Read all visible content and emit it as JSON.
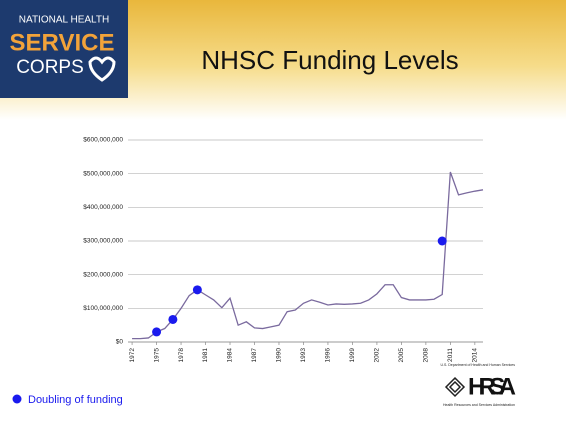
{
  "slide": {
    "logo": {
      "line1": "NATIONAL HEALTH",
      "line2": "SERVICE",
      "line3": "CORPS"
    },
    "hrsa": {
      "top": "U.S. Department of Health and Human Services",
      "name": "HRSA",
      "bottom": "Health Resources and Services Administration"
    }
  },
  "chart_data": {
    "type": "line",
    "title": "NHSC Funding Levels",
    "x": [
      1972,
      1973,
      1974,
      1975,
      1976,
      1977,
      1978,
      1979,
      1980,
      1981,
      1982,
      1983,
      1984,
      1985,
      1986,
      1987,
      1988,
      1989,
      1990,
      1991,
      1992,
      1993,
      1994,
      1995,
      1996,
      1997,
      1998,
      1999,
      2000,
      2001,
      2002,
      2003,
      2004,
      2005,
      2006,
      2007,
      2008,
      2009,
      2010,
      2011,
      2012,
      2013,
      2014,
      2015
    ],
    "series": [
      {
        "color": "#7a6a9e",
        "values": [
          10000000,
          10000000,
          12000000,
          30000000,
          40000000,
          67000000,
          100000000,
          138000000,
          155000000,
          140000000,
          125000000,
          102000000,
          130000000,
          50000000,
          60000000,
          42000000,
          40000000,
          45000000,
          50000000,
          90000000,
          95000000,
          115000000,
          125000000,
          118000000,
          110000000,
          113000000,
          112000000,
          113000000,
          115000000,
          125000000,
          143000000,
          170000000,
          170000000,
          132000000,
          125000000,
          125000000,
          125000000,
          127000000,
          141000000,
          505000000,
          437000000,
          443000000,
          448000000,
          452000000
        ]
      },
      {
        "name": "Doubling of funding",
        "color": "#1a1aee",
        "x": [
          1975,
          1977,
          1980,
          2010
        ],
        "values": [
          30000000,
          67000000,
          155000000,
          300000000
        ]
      }
    ],
    "xlim": [
      1971.5,
      2015
    ],
    "xticks": [
      1972,
      1975,
      1978,
      1981,
      1984,
      1987,
      1990,
      1993,
      1996,
      1999,
      2002,
      2005,
      2008,
      2011,
      2014
    ],
    "ylim": [
      0,
      600000000
    ],
    "yticks": [
      {
        "value": 0,
        "label": "$0"
      },
      {
        "value": 100000000,
        "label": "$100,000,000"
      },
      {
        "value": 200000000,
        "label": "$200,000,000"
      },
      {
        "value": 300000000,
        "label": "$300,000,000"
      },
      {
        "value": 400000000,
        "label": "$400,000,000"
      },
      {
        "value": 500000000,
        "label": "$500,000,000"
      },
      {
        "value": 600000000,
        "label": "$600,000,000"
      }
    ],
    "grid": true,
    "legend": "bottom-left"
  }
}
